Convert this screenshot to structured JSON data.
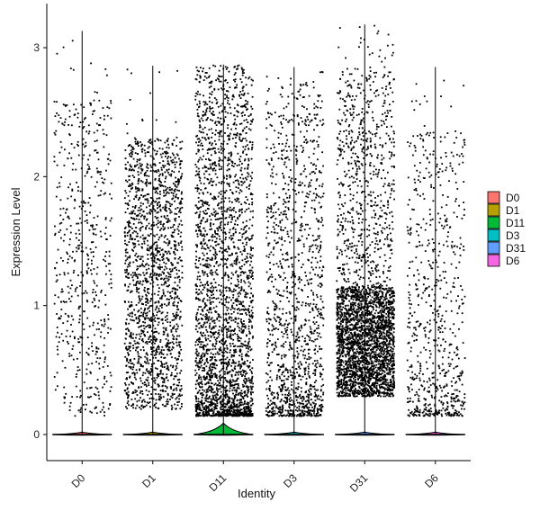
{
  "chart_data": {
    "type": "violin-jitter",
    "xlabel": "Identity",
    "ylabel": "Expression Level",
    "ylim": [
      -0.16,
      3.2
    ],
    "yticks": [
      0,
      1,
      2,
      3
    ],
    "categories": [
      "D0",
      "D1",
      "D11",
      "D3",
      "D31",
      "D6"
    ],
    "colors": [
      "#F8766D",
      "#B79F00",
      "#00BA38",
      "#00BFC4",
      "#619CFF",
      "#F564E3"
    ],
    "legend": {
      "position": "right",
      "entries": [
        "D0",
        "D1",
        "D11",
        "D3",
        "D31",
        "D6"
      ]
    },
    "groups": [
      {
        "name": "D0",
        "max": 3.13,
        "violin_peak": 0.012,
        "points": 560,
        "dist": "uniform",
        "range": [
          0.15,
          2.6
        ]
      },
      {
        "name": "D1",
        "max": 2.86,
        "violin_peak": 0.012,
        "points": 1700,
        "dist": "uniform",
        "range": [
          0.2,
          2.3
        ]
      },
      {
        "name": "D11",
        "max": 2.87,
        "violin_peak": 0.055,
        "points": 2600,
        "dist": "skewed",
        "range": [
          0.15,
          2.7
        ]
      },
      {
        "name": "D3",
        "max": 2.85,
        "violin_peak": 0.012,
        "points": 1300,
        "dist": "skewed",
        "range": [
          0.15,
          2.5
        ]
      },
      {
        "name": "D31",
        "max": 3.18,
        "violin_peak": 0.012,
        "points": 3200,
        "dist": "dense",
        "range": [
          0.3,
          2.8
        ]
      },
      {
        "name": "D6",
        "max": 2.85,
        "violin_peak": 0.012,
        "points": 700,
        "dist": "skewed",
        "range": [
          0.15,
          2.35
        ]
      }
    ]
  }
}
